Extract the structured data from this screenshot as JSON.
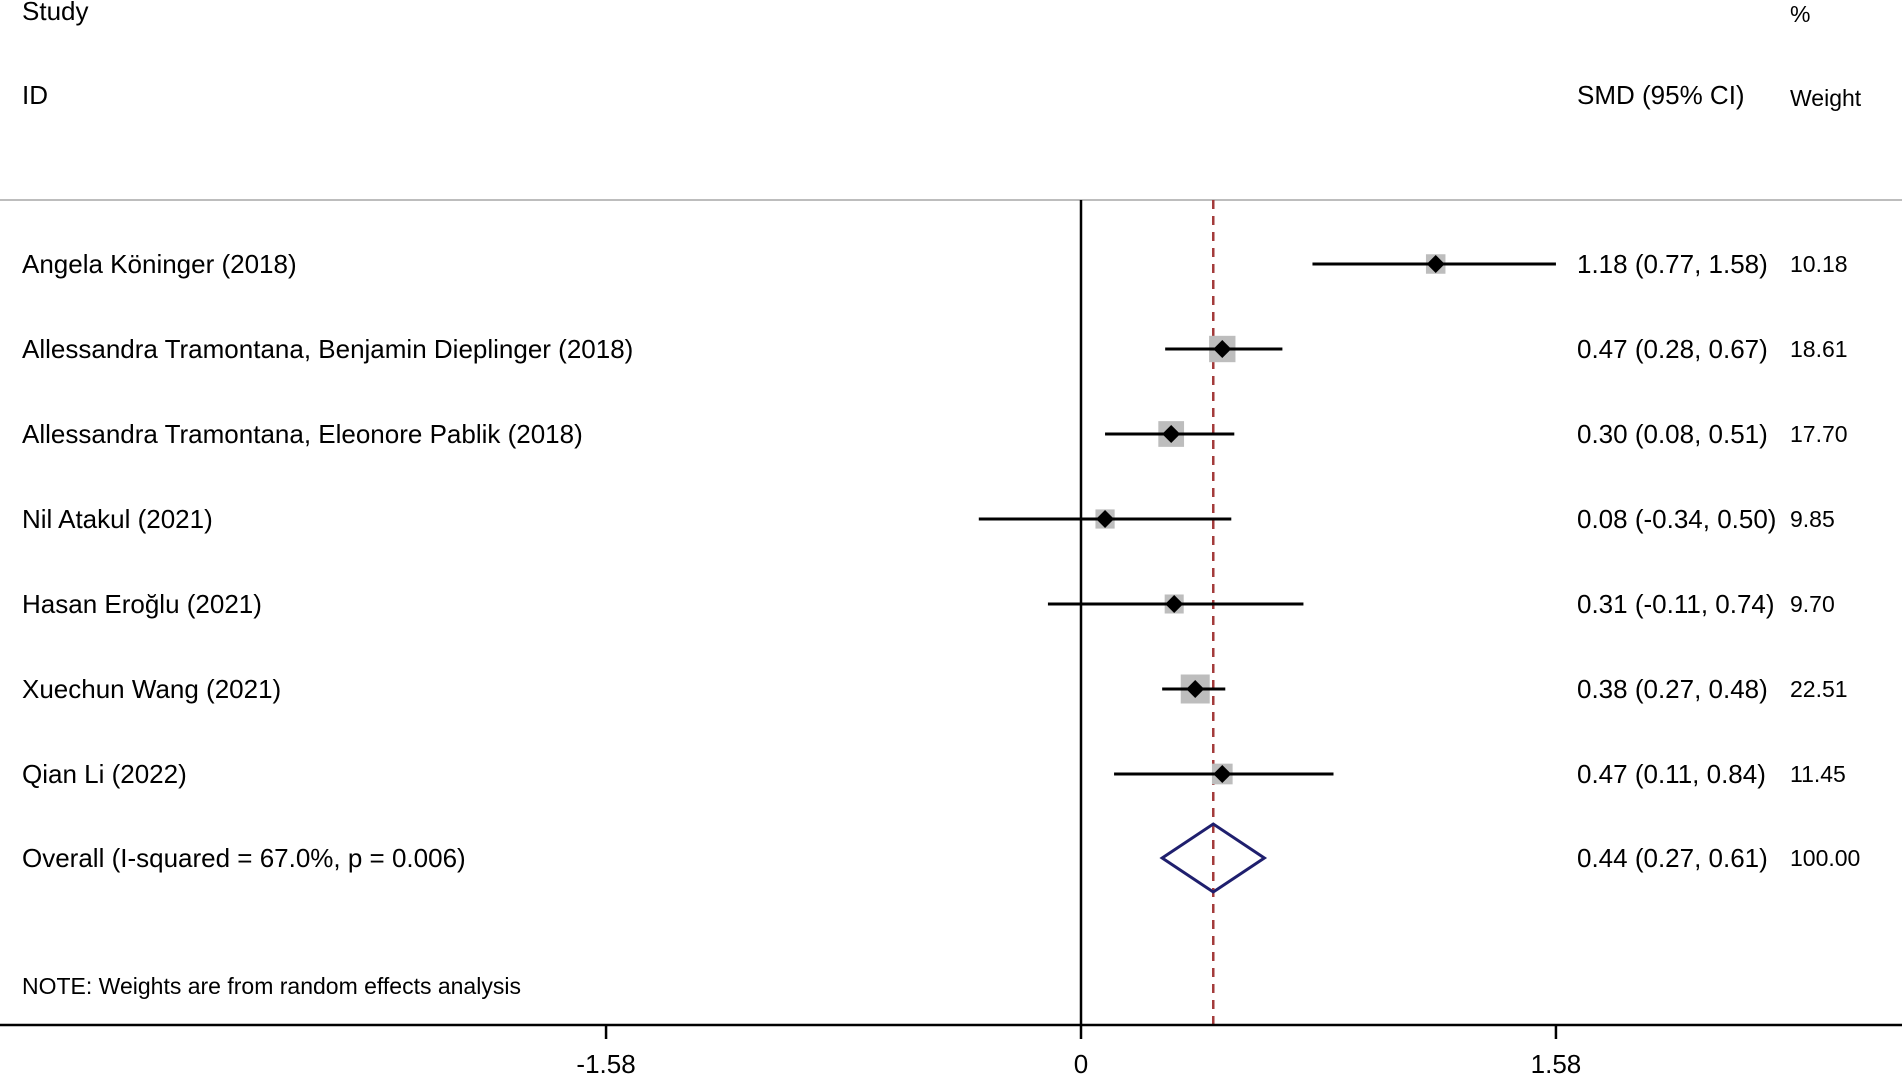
{
  "colors": {
    "text": "#000000",
    "ci_line": "#000000",
    "weight_box": "#bdbdbd",
    "point_marker": "#000000",
    "null_line": "#000000",
    "overall_line": "#a33a3a",
    "overall_diamond": "#1f1f6e",
    "separator_line": "#bdbdbd"
  },
  "chart_data": {
    "type": "forest",
    "header": {
      "study_line1": "Study",
      "study_line2": "ID",
      "effect_label": "SMD (95% CI)",
      "weight_line1": "%",
      "weight_line2": "Weight"
    },
    "xlim": [
      -2.13,
      2.2
    ],
    "x_ticks": [
      -1.58,
      0,
      1.58
    ],
    "x_tick_labels": [
      "-1.58",
      "0",
      "1.58"
    ],
    "null_value": 0,
    "studies": [
      {
        "label": "Angela Köninger (2018)",
        "smd": 1.18,
        "ci_lower": 0.77,
        "ci_upper": 1.58,
        "ci_text": "1.18 (0.77, 1.58)",
        "weight": 10.18,
        "weight_text": "10.18"
      },
      {
        "label": "Allessandra Tramontana, Benjamin Dieplinger (2018)",
        "smd": 0.47,
        "ci_lower": 0.28,
        "ci_upper": 0.67,
        "ci_text": "0.47 (0.28, 0.67)",
        "weight": 18.61,
        "weight_text": "18.61"
      },
      {
        "label": "Allessandra Tramontana, Eleonore Pablik (2018)",
        "smd": 0.3,
        "ci_lower": 0.08,
        "ci_upper": 0.51,
        "ci_text": "0.30 (0.08, 0.51)",
        "weight": 17.7,
        "weight_text": "17.70"
      },
      {
        "label": "Nil Atakul (2021)",
        "smd": 0.08,
        "ci_lower": -0.34,
        "ci_upper": 0.5,
        "ci_text": "0.08 (-0.34, 0.50)",
        "weight": 9.85,
        "weight_text": "9.85"
      },
      {
        "label": "Hasan Eroğlu (2021)",
        "smd": 0.31,
        "ci_lower": -0.11,
        "ci_upper": 0.74,
        "ci_text": "0.31 (-0.11, 0.74)",
        "weight": 9.7,
        "weight_text": "9.70"
      },
      {
        "label": "Xuechun Wang  (2021)",
        "smd": 0.38,
        "ci_lower": 0.27,
        "ci_upper": 0.48,
        "ci_text": "0.38 (0.27, 0.48)",
        "weight": 22.51,
        "weight_text": "22.51"
      },
      {
        "label": "Qian Li  (2022)",
        "smd": 0.47,
        "ci_lower": 0.11,
        "ci_upper": 0.84,
        "ci_text": "0.47 (0.11, 0.84)",
        "weight": 11.45,
        "weight_text": "11.45"
      }
    ],
    "overall": {
      "label": "Overall  (I-squared = 67.0%, p = 0.006)",
      "smd": 0.44,
      "ci_lower": 0.27,
      "ci_upper": 0.61,
      "ci_text": "0.44 (0.27, 0.61)",
      "weight": 100.0,
      "weight_text": "100.00"
    },
    "note": "NOTE: Weights are from random effects analysis"
  }
}
